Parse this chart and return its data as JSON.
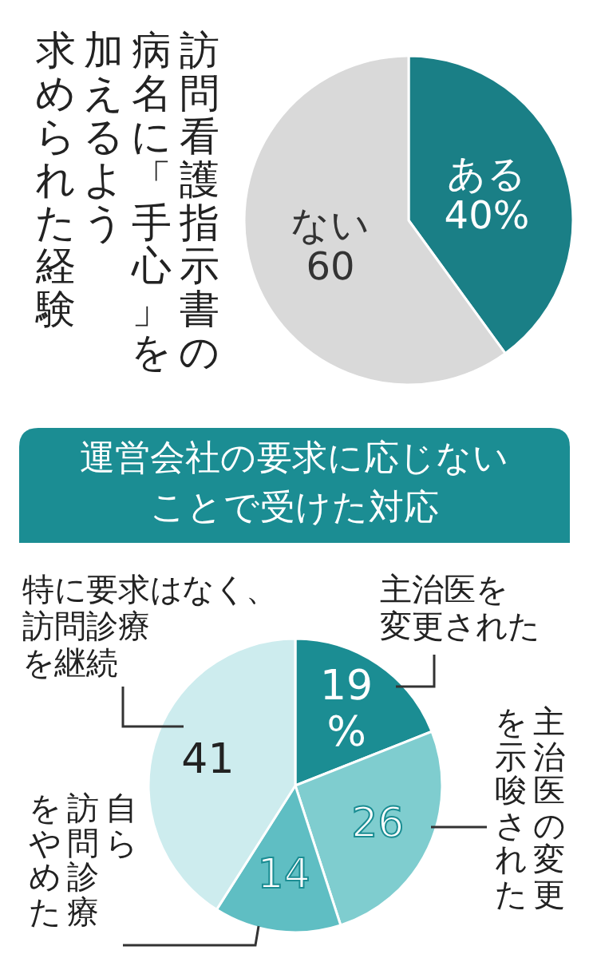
{
  "chart_data": [
    {
      "type": "pie",
      "title": "訪問看護指示書の病名に「手心」を加えるよう求められた経験",
      "categories": [
        "ある",
        "ない"
      ],
      "values": [
        40,
        60
      ],
      "value_labels": [
        "40%",
        "60"
      ],
      "colors": [
        "#1a7f86",
        "#d9d9d9"
      ]
    },
    {
      "type": "pie",
      "title": "運営会社の要求に応じないことで受けた対応",
      "categories": [
        "主治医を変更された",
        "主治医の変更を示唆された",
        "自ら訪問診療をやめた",
        "特に要求はなく、訪問診療を継続"
      ],
      "values": [
        19,
        26,
        14,
        41
      ],
      "value_labels": [
        "19%",
        "26",
        "14",
        "41"
      ],
      "colors": [
        "#1b8d93",
        "#7fcdcf",
        "#5fbec3",
        "#cdecee"
      ]
    }
  ]
}
